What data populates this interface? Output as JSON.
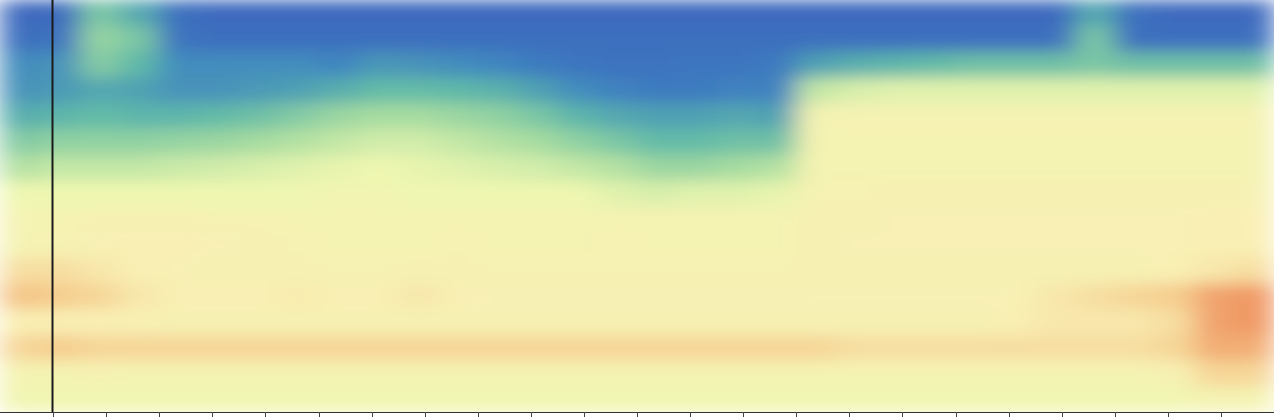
{
  "chart_data": {
    "type": "heatmap",
    "values": [
      [
        5,
        5,
        40,
        30,
        8,
        5,
        5,
        5,
        5,
        5,
        5,
        5,
        5,
        5,
        5,
        5,
        5,
        5,
        5,
        5,
        5,
        5,
        5,
        5,
        5,
        5,
        5,
        30,
        8,
        5,
        5,
        5
      ],
      [
        8,
        10,
        45,
        40,
        10,
        8,
        8,
        8,
        8,
        8,
        8,
        8,
        8,
        8,
        8,
        8,
        8,
        8,
        8,
        8,
        8,
        8,
        8,
        8,
        8,
        8,
        8,
        40,
        8,
        8,
        8,
        8
      ],
      [
        22,
        24,
        42,
        35,
        22,
        22,
        22,
        22,
        20,
        25,
        24,
        22,
        20,
        15,
        12,
        10,
        10,
        12,
        12,
        14,
        28,
        32,
        34,
        36,
        38,
        38,
        38,
        40,
        38,
        38,
        38,
        38
      ],
      [
        24,
        26,
        30,
        28,
        24,
        24,
        26,
        28,
        32,
        36,
        36,
        35,
        33,
        28,
        22,
        18,
        15,
        15,
        18,
        18,
        52,
        55,
        56,
        56,
        56,
        56,
        56,
        56,
        56,
        56,
        56,
        56
      ],
      [
        32,
        34,
        36,
        34,
        34,
        36,
        38,
        42,
        46,
        48,
        48,
        46,
        44,
        40,
        34,
        30,
        28,
        28,
        30,
        28,
        62,
        63,
        63,
        63,
        63,
        63,
        63,
        63,
        63,
        63,
        63,
        63
      ],
      [
        42,
        44,
        44,
        44,
        45,
        46,
        48,
        50,
        52,
        54,
        54,
        52,
        50,
        48,
        44,
        40,
        36,
        36,
        38,
        38,
        62,
        62,
        62,
        62,
        62,
        62,
        62,
        62,
        62,
        62,
        62,
        62
      ],
      [
        50,
        52,
        52,
        52,
        53,
        54,
        55,
        56,
        57,
        58,
        57,
        56,
        55,
        54,
        52,
        50,
        46,
        46,
        48,
        50,
        62,
        62,
        62,
        62,
        62,
        62,
        62,
        62,
        62,
        62,
        62,
        62
      ],
      [
        58,
        58,
        58,
        58,
        58,
        58,
        58,
        59,
        60,
        60,
        59,
        59,
        58,
        58,
        58,
        56,
        55,
        56,
        56,
        57,
        63,
        63,
        64,
        64,
        64,
        64,
        64,
        64,
        64,
        64,
        64,
        64
      ],
      [
        62,
        62,
        64,
        64,
        64,
        63,
        63,
        62,
        62,
        62,
        62,
        62,
        62,
        62,
        62,
        62,
        62,
        62,
        62,
        62,
        64,
        64,
        65,
        65,
        65,
        65,
        65,
        65,
        65,
        65,
        66,
        66
      ],
      [
        62,
        63,
        65,
        66,
        66,
        65,
        64,
        63,
        62,
        62,
        62,
        63,
        62,
        62,
        62,
        63,
        62,
        62,
        62,
        62,
        64,
        65,
        65,
        65,
        65,
        65,
        65,
        65,
        65,
        65,
        66,
        66
      ],
      [
        70,
        70,
        68,
        66,
        65,
        64,
        64,
        64,
        63,
        63,
        64,
        64,
        63,
        63,
        63,
        63,
        63,
        63,
        63,
        63,
        64,
        64,
        64,
        64,
        64,
        64,
        64,
        64,
        64,
        66,
        68,
        70
      ],
      [
        76,
        74,
        72,
        68,
        66,
        66,
        66,
        67,
        66,
        66,
        68,
        66,
        65,
        65,
        65,
        65,
        65,
        65,
        65,
        65,
        65,
        65,
        65,
        65,
        65,
        65,
        68,
        70,
        72,
        74,
        82,
        84
      ],
      [
        66,
        66,
        66,
        65,
        64,
        64,
        64,
        64,
        64,
        64,
        64,
        64,
        64,
        64,
        64,
        64,
        64,
        64,
        64,
        64,
        64,
        64,
        64,
        64,
        64,
        66,
        68,
        68,
        68,
        70,
        82,
        84
      ],
      [
        72,
        74,
        72,
        72,
        72,
        72,
        72,
        72,
        72,
        72,
        72,
        72,
        72,
        72,
        72,
        72,
        72,
        72,
        72,
        72,
        72,
        70,
        70,
        70,
        70,
        70,
        70,
        70,
        70,
        72,
        80,
        80
      ],
      [
        62,
        62,
        63,
        62,
        62,
        62,
        62,
        62,
        62,
        62,
        62,
        62,
        62,
        62,
        62,
        62,
        62,
        62,
        62,
        62,
        62,
        62,
        62,
        62,
        62,
        62,
        62,
        62,
        62,
        64,
        72,
        72
      ],
      [
        60,
        60,
        60,
        60,
        60,
        60,
        60,
        60,
        60,
        60,
        60,
        60,
        60,
        60,
        60,
        60,
        60,
        60,
        60,
        60,
        60,
        60,
        60,
        60,
        60,
        60,
        60,
        60,
        60,
        60,
        62,
        62
      ]
    ],
    "zlim": [
      0,
      100
    ],
    "xlim": [
      0,
      24
    ],
    "xticks": [
      1,
      2,
      3,
      4,
      5,
      6,
      7,
      8,
      9,
      10,
      11,
      12,
      13,
      14,
      15,
      16,
      17,
      18,
      19,
      20,
      21,
      22,
      23
    ],
    "tick_labels": false
  }
}
